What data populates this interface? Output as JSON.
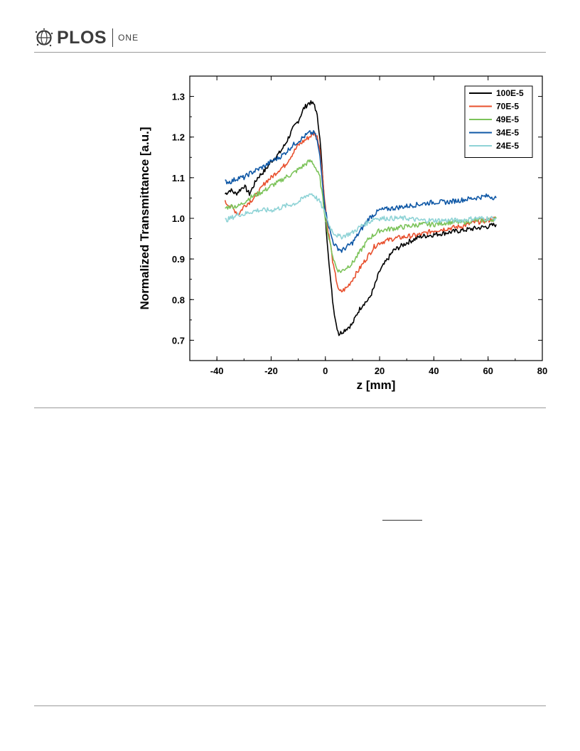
{
  "header": {
    "logo_text": "PLOS",
    "logo_sub": "ONE"
  },
  "chart_data": {
    "type": "line",
    "xlabel": "z [mm]",
    "ylabel": "Normalized Transmittance [a.u.]",
    "xlim": [
      -50,
      80
    ],
    "ylim": [
      0.65,
      1.35
    ],
    "xticks": [
      -40,
      -20,
      0,
      20,
      40,
      60,
      80
    ],
    "yticks": [
      0.7,
      0.8,
      0.9,
      1.0,
      1.1,
      1.2,
      1.3
    ],
    "xtick_labels": [
      "-40",
      "-20",
      "0",
      "20",
      "40",
      "60",
      "80"
    ],
    "ytick_labels": [
      "0.7",
      "0.8",
      "0.9",
      "1.0",
      "1.1",
      "1.2",
      "1.3"
    ],
    "grid": false,
    "legend_position": "top-right",
    "series": [
      {
        "name": "100E-5",
        "color": "#000000",
        "x": [
          -37,
          -35,
          -33,
          -30,
          -28,
          -25,
          -22,
          -20,
          -17,
          -15,
          -12,
          -10,
          -8,
          -6,
          -4,
          -3,
          -2,
          0,
          1,
          2,
          3,
          4,
          5,
          6,
          8,
          10,
          12,
          14,
          16,
          18,
          20,
          25,
          30,
          35,
          40,
          45,
          50,
          55,
          60,
          63
        ],
        "y": [
          1.06,
          1.07,
          1.06,
          1.08,
          1.06,
          1.1,
          1.12,
          1.14,
          1.16,
          1.18,
          1.22,
          1.24,
          1.27,
          1.285,
          1.28,
          1.25,
          1.2,
          1.0,
          0.92,
          0.84,
          0.78,
          0.74,
          0.715,
          0.72,
          0.73,
          0.74,
          0.77,
          0.79,
          0.8,
          0.83,
          0.87,
          0.92,
          0.94,
          0.955,
          0.96,
          0.965,
          0.97,
          0.975,
          0.98,
          0.985
        ]
      },
      {
        "name": "70E-5",
        "color": "#e8502e",
        "x": [
          -37,
          -35,
          -32,
          -30,
          -28,
          -25,
          -22,
          -20,
          -17,
          -15,
          -12,
          -10,
          -8,
          -6,
          -4,
          -3,
          -2,
          0,
          1,
          2,
          3,
          4,
          5,
          6,
          8,
          10,
          12,
          14,
          16,
          18,
          20,
          25,
          30,
          35,
          40,
          45,
          50,
          55,
          60,
          63
        ],
        "y": [
          1.04,
          1.03,
          1.01,
          1.03,
          1.04,
          1.06,
          1.09,
          1.1,
          1.12,
          1.13,
          1.16,
          1.18,
          1.19,
          1.2,
          1.21,
          1.2,
          1.17,
          1.03,
          0.97,
          0.93,
          0.88,
          0.85,
          0.82,
          0.82,
          0.83,
          0.85,
          0.87,
          0.89,
          0.91,
          0.93,
          0.94,
          0.95,
          0.955,
          0.96,
          0.97,
          0.975,
          0.98,
          0.99,
          0.995,
          1.0
        ]
      },
      {
        "name": "49E-5",
        "color": "#7cc35a",
        "x": [
          -37,
          -35,
          -32,
          -30,
          -28,
          -25,
          -22,
          -20,
          -17,
          -15,
          -12,
          -10,
          -8,
          -6,
          -5,
          -4,
          -2,
          0,
          1,
          2,
          3,
          4,
          5,
          6,
          8,
          10,
          12,
          14,
          16,
          18,
          20,
          25,
          30,
          35,
          40,
          45,
          50,
          55,
          60,
          63
        ],
        "y": [
          1.025,
          1.03,
          1.03,
          1.04,
          1.05,
          1.06,
          1.07,
          1.08,
          1.09,
          1.1,
          1.11,
          1.12,
          1.13,
          1.14,
          1.14,
          1.13,
          1.1,
          1.0,
          0.96,
          0.93,
          0.9,
          0.88,
          0.87,
          0.87,
          0.88,
          0.89,
          0.91,
          0.93,
          0.95,
          0.96,
          0.97,
          0.975,
          0.98,
          0.985,
          0.985,
          0.99,
          0.99,
          0.995,
          0.995,
          1.0
        ]
      },
      {
        "name": "34E-5",
        "color": "#0f58a6",
        "x": [
          -37,
          -35,
          -32,
          -30,
          -28,
          -25,
          -22,
          -20,
          -17,
          -15,
          -12,
          -10,
          -8,
          -6,
          -4,
          -3,
          -2,
          0,
          1,
          2,
          3,
          4,
          5,
          6,
          8,
          10,
          12,
          14,
          16,
          18,
          20,
          25,
          30,
          35,
          40,
          45,
          50,
          55,
          60,
          63
        ],
        "y": [
          1.09,
          1.09,
          1.1,
          1.1,
          1.11,
          1.12,
          1.13,
          1.14,
          1.15,
          1.16,
          1.18,
          1.19,
          1.2,
          1.21,
          1.21,
          1.19,
          1.15,
          1.02,
          0.99,
          0.96,
          0.94,
          0.93,
          0.925,
          0.92,
          0.93,
          0.94,
          0.96,
          0.98,
          1.0,
          1.01,
          1.02,
          1.025,
          1.03,
          1.035,
          1.04,
          1.04,
          1.045,
          1.05,
          1.055,
          1.05
        ]
      },
      {
        "name": "24E-5",
        "color": "#8fd3d6",
        "x": [
          -37,
          -35,
          -32,
          -30,
          -28,
          -25,
          -22,
          -20,
          -17,
          -15,
          -12,
          -10,
          -8,
          -6,
          -5,
          -4,
          -2,
          0,
          1,
          2,
          3,
          4,
          5,
          6,
          8,
          10,
          12,
          14,
          16,
          18,
          20,
          25,
          30,
          35,
          40,
          45,
          50,
          55,
          60,
          63
        ],
        "y": [
          0.995,
          1.0,
          1.01,
          1.01,
          1.015,
          1.02,
          1.02,
          1.02,
          1.025,
          1.03,
          1.035,
          1.04,
          1.05,
          1.06,
          1.06,
          1.055,
          1.04,
          1.01,
          0.99,
          0.975,
          0.965,
          0.96,
          0.955,
          0.955,
          0.96,
          0.965,
          0.975,
          0.985,
          0.99,
          1.0,
          1.0,
          1.0,
          1.0,
          0.995,
          0.995,
          0.995,
          0.995,
          1.0,
          1.0,
          1.0
        ]
      }
    ]
  }
}
